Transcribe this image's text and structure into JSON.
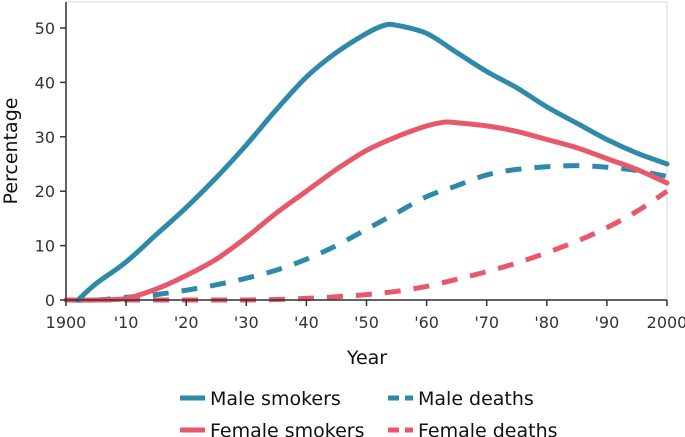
{
  "chart_data": {
    "type": "line",
    "xlabel": "Year",
    "ylabel": "Percentage",
    "xlim": [
      1900,
      2000
    ],
    "ylim": [
      0,
      55
    ],
    "x_ticks": [
      1900,
      1910,
      1920,
      1930,
      1940,
      1950,
      1960,
      1970,
      1980,
      1990,
      2000
    ],
    "x_tick_labels": [
      "1900",
      "'10",
      "'20",
      "'30",
      "'40",
      "'50",
      "'60",
      "'70",
      "'80",
      "'90",
      "2000"
    ],
    "y_ticks": [
      0,
      10,
      20,
      30,
      40,
      50
    ],
    "y_tick_labels": [
      "0",
      "10",
      "20",
      "30",
      "40",
      "50"
    ],
    "grid": false,
    "legend_position": "bottom",
    "series": [
      {
        "name": "Male smokers",
        "color": "#2f8aaa",
        "dash": "solid",
        "points": [
          [
            1902,
            0
          ],
          [
            1905,
            3
          ],
          [
            1910,
            7
          ],
          [
            1915,
            12
          ],
          [
            1920,
            17
          ],
          [
            1925,
            22.5
          ],
          [
            1930,
            28.5
          ],
          [
            1935,
            35
          ],
          [
            1940,
            41
          ],
          [
            1945,
            45.5
          ],
          [
            1950,
            49
          ],
          [
            1953,
            50.5
          ],
          [
            1955,
            50.5
          ],
          [
            1960,
            49
          ],
          [
            1965,
            45.5
          ],
          [
            1970,
            42
          ],
          [
            1975,
            39
          ],
          [
            1980,
            35.5
          ],
          [
            1985,
            32.5
          ],
          [
            1990,
            29.5
          ],
          [
            1995,
            27
          ],
          [
            2000,
            25
          ]
        ]
      },
      {
        "name": "Female smokers",
        "color": "#e8586a",
        "dash": "solid",
        "points": [
          [
            1900,
            0
          ],
          [
            1905,
            0
          ],
          [
            1910,
            0.3
          ],
          [
            1915,
            2
          ],
          [
            1920,
            4.5
          ],
          [
            1925,
            7.5
          ],
          [
            1930,
            11.5
          ],
          [
            1935,
            16
          ],
          [
            1940,
            20
          ],
          [
            1945,
            24
          ],
          [
            1950,
            27.5
          ],
          [
            1955,
            30
          ],
          [
            1960,
            32
          ],
          [
            1963,
            32.7
          ],
          [
            1965,
            32.6
          ],
          [
            1970,
            32
          ],
          [
            1975,
            31
          ],
          [
            1980,
            29.5
          ],
          [
            1985,
            28
          ],
          [
            1990,
            26
          ],
          [
            1995,
            24
          ],
          [
            2000,
            21.5
          ]
        ]
      },
      {
        "name": "Male deaths",
        "color": "#2f8aaa",
        "dash": "dashed",
        "points": [
          [
            1900,
            0
          ],
          [
            1905,
            0
          ],
          [
            1910,
            0.5
          ],
          [
            1915,
            1
          ],
          [
            1920,
            1.8
          ],
          [
            1925,
            2.8
          ],
          [
            1930,
            4
          ],
          [
            1935,
            5.5
          ],
          [
            1940,
            7.5
          ],
          [
            1945,
            10
          ],
          [
            1950,
            13
          ],
          [
            1955,
            16
          ],
          [
            1960,
            19
          ],
          [
            1965,
            21
          ],
          [
            1970,
            23
          ],
          [
            1975,
            24
          ],
          [
            1980,
            24.5
          ],
          [
            1985,
            24.7
          ],
          [
            1990,
            24.4
          ],
          [
            1995,
            23.8
          ],
          [
            2000,
            22.7
          ]
        ]
      },
      {
        "name": "Female deaths",
        "color": "#e8586a",
        "dash": "dashed",
        "points": [
          [
            1900,
            0
          ],
          [
            1920,
            0
          ],
          [
            1930,
            0
          ],
          [
            1935,
            0.1
          ],
          [
            1940,
            0.3
          ],
          [
            1945,
            0.6
          ],
          [
            1950,
            1
          ],
          [
            1955,
            1.6
          ],
          [
            1960,
            2.5
          ],
          [
            1965,
            3.8
          ],
          [
            1970,
            5.2
          ],
          [
            1975,
            6.8
          ],
          [
            1980,
            8.7
          ],
          [
            1985,
            10.8
          ],
          [
            1990,
            13.3
          ],
          [
            1995,
            16.3
          ],
          [
            2000,
            20
          ]
        ]
      }
    ]
  }
}
